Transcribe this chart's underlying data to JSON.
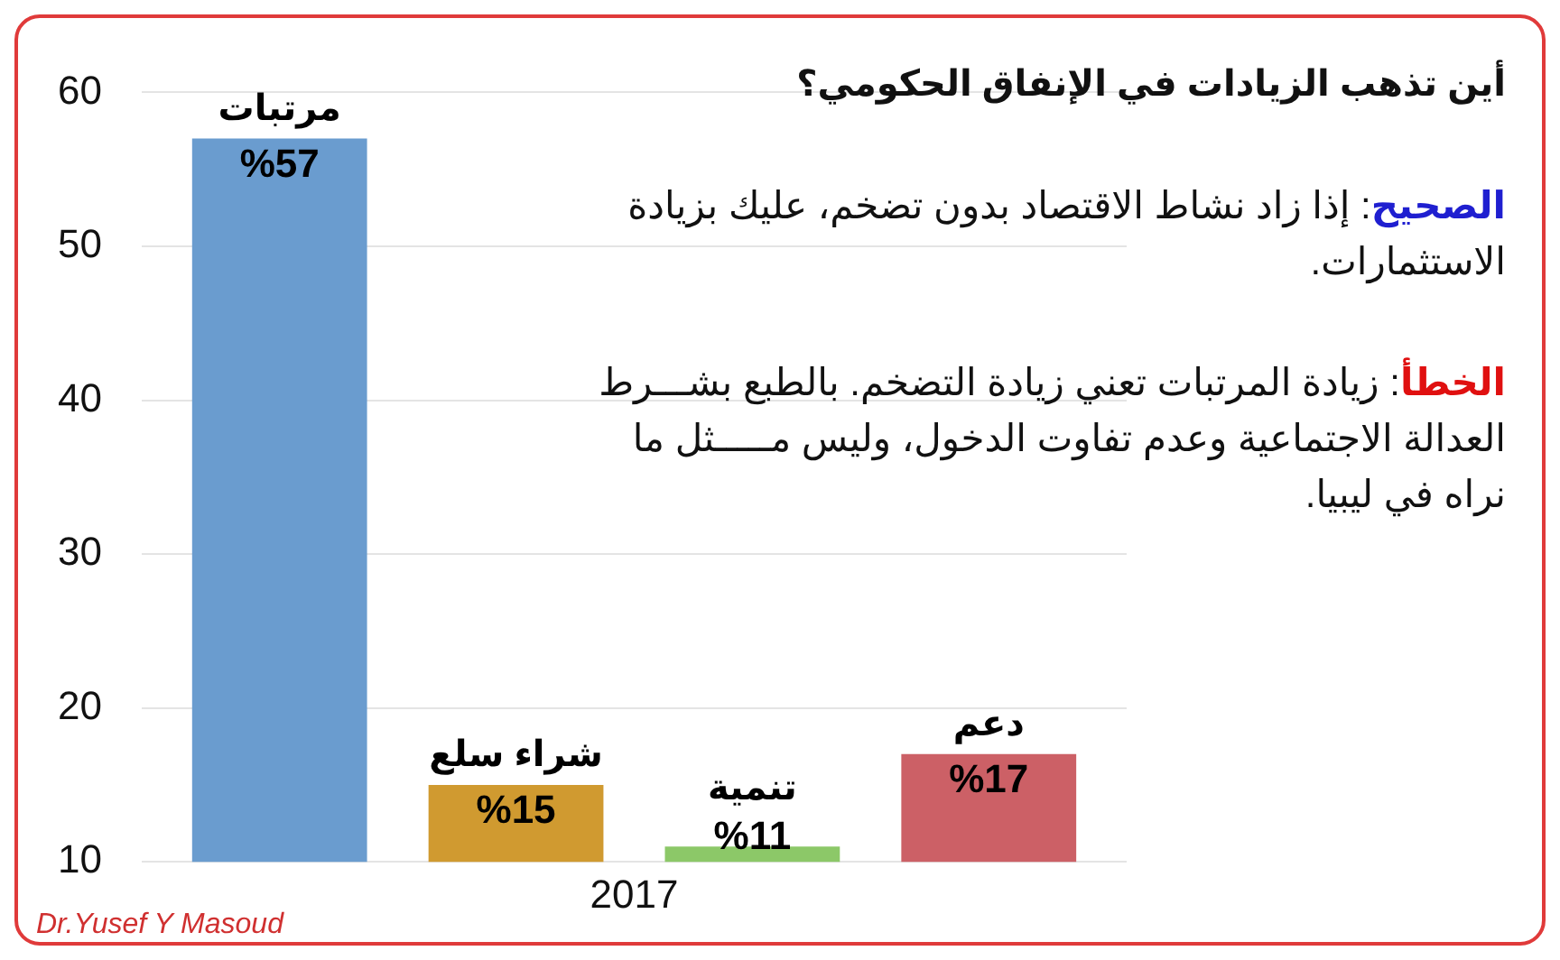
{
  "chart_data": {
    "type": "bar",
    "title": "أين تذهب الزيادات في الإنفاق الحكومي؟",
    "categories": [
      "2017"
    ],
    "series": [
      {
        "name": "مرتبات",
        "color": "#6a9ccf",
        "values": [
          57
        ],
        "value_labels": [
          "%57"
        ]
      },
      {
        "name": "شراء سلع",
        "color": "#d09a30",
        "values": [
          15
        ],
        "value_labels": [
          "%15"
        ]
      },
      {
        "name": "تنمية",
        "color": "#8cc868",
        "values": [
          11
        ],
        "value_labels": [
          "%11"
        ]
      },
      {
        "name": "دعم",
        "color": "#cc6066",
        "values": [
          17
        ],
        "value_labels": [
          "%17"
        ]
      }
    ],
    "ylim": [
      10,
      60
    ],
    "yticks": [
      10,
      20,
      30,
      40,
      50,
      60
    ],
    "grid": "y",
    "legend": false,
    "annotations": [
      "الصحيح: إذا زاد نشاط الاقتصاد بدون تضخم، عليك بزيادة الاستثمارات.",
      "الخطأ: زيادة المرتبات تعني زيادة التضخم. بالطبع بشـــرط العدالة الاجتماعية وعدم تفاوت الدخول، وليس مـــــثل ما نراه في ليبيا.",
      "Dr.Yusef Y Masoud"
    ]
  }
}
